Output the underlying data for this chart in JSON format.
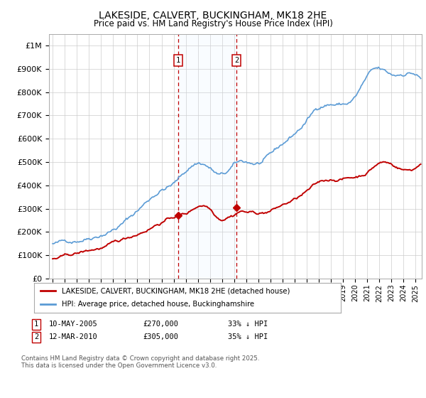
{
  "title": "LAKESIDE, CALVERT, BUCKINGHAM, MK18 2HE",
  "subtitle": "Price paid vs. HM Land Registry's House Price Index (HPI)",
  "ylim": [
    0,
    1050000
  ],
  "yticks": [
    0,
    100000,
    200000,
    300000,
    400000,
    500000,
    600000,
    700000,
    800000,
    900000,
    1000000
  ],
  "ytick_labels": [
    "£0",
    "£100K",
    "£200K",
    "£300K",
    "£400K",
    "£500K",
    "£600K",
    "£700K",
    "£800K",
    "£900K",
    "£1M"
  ],
  "hpi_color": "#5b9bd5",
  "price_color": "#c00000",
  "vline_color": "#c00000",
  "shade_color": "#ddeeff",
  "t1_x": 2005.36,
  "t2_x": 2010.2,
  "t1_y": 270000,
  "t2_y": 305000,
  "transaction1": {
    "date_num": 2005.36,
    "price": 270000,
    "label": "1",
    "date_str": "10-MAY-2005",
    "pct": "33% ↓ HPI"
  },
  "transaction2": {
    "date_num": 2010.2,
    "price": 305000,
    "label": "2",
    "date_str": "12-MAR-2010",
    "pct": "35% ↓ HPI"
  },
  "legend_label_price": "LAKESIDE, CALVERT, BUCKINGHAM, MK18 2HE (detached house)",
  "legend_label_hpi": "HPI: Average price, detached house, Buckinghamshire",
  "footnote": "Contains HM Land Registry data © Crown copyright and database right 2025.\nThis data is licensed under the Open Government Licence v3.0.",
  "background_color": "#ffffff",
  "grid_color": "#cccccc",
  "xlim_min": 1995.0,
  "xlim_max": 2025.5
}
